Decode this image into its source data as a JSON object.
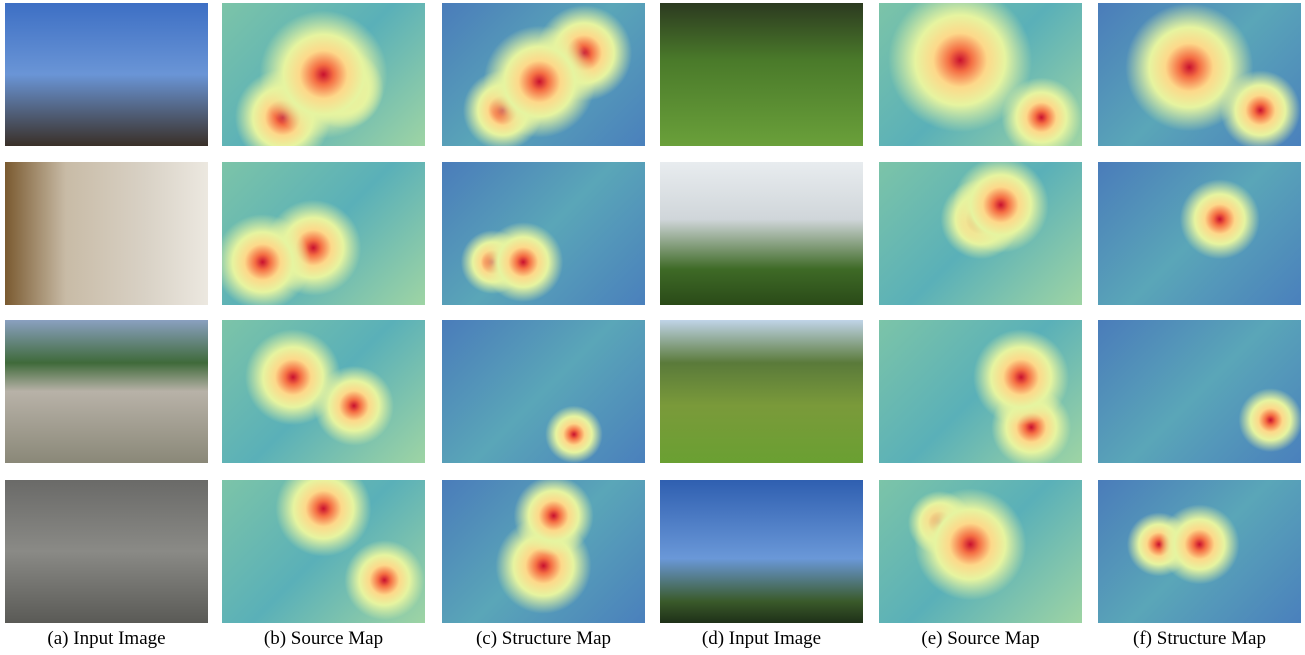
{
  "captions": [
    "(a) Input Image",
    "(b) Source Map",
    "(c) Structure Map",
    "(d) Input Image",
    "(e) Source Map",
    "(f) Structure Map"
  ]
}
